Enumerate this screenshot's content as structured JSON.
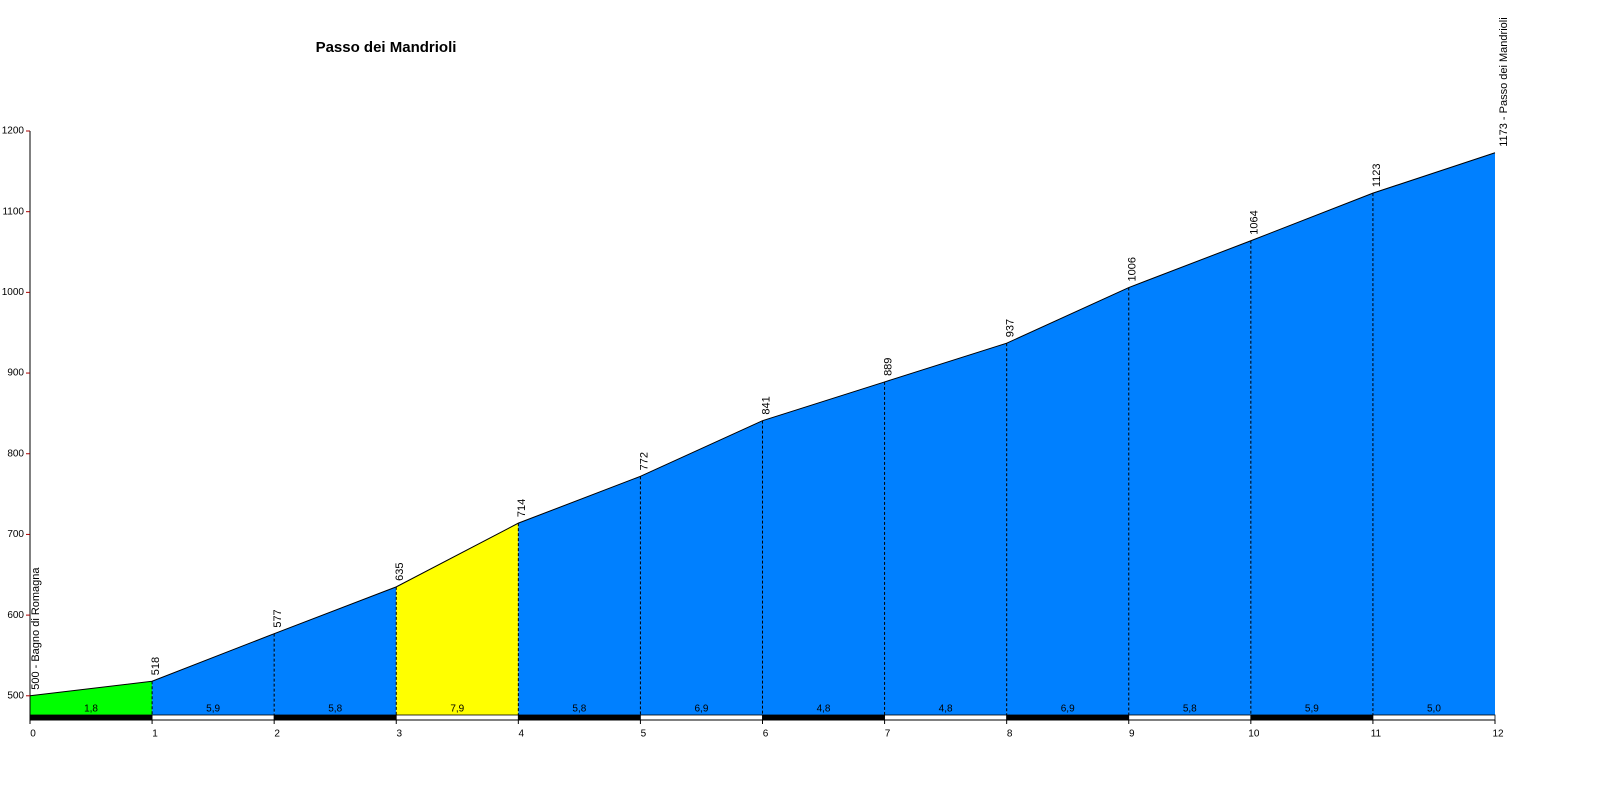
{
  "chart_data": {
    "type": "elevation-profile",
    "title": "Passo dei Mandrioli",
    "x": [
      0,
      1,
      2,
      3,
      4,
      5,
      6,
      7,
      8,
      9,
      10,
      11,
      12
    ],
    "values": [
      500,
      518,
      577,
      635,
      714,
      772,
      841,
      889,
      937,
      1006,
      1064,
      1123,
      1173
    ],
    "value_labels": [
      "500 - Bagno di Romagna",
      "518",
      "577",
      "635",
      "714",
      "772",
      "841",
      "889",
      "937",
      "1006",
      "1064",
      "1123",
      "1173 - Passo dei Mandrioli"
    ],
    "gradients": [
      1.8,
      5.9,
      5.8,
      7.9,
      5.8,
      6.9,
      4.8,
      4.8,
      6.9,
      5.8,
      5.9,
      5.0
    ],
    "gradient_labels": [
      "1,8",
      "5,9",
      "5,8",
      "7,9",
      "5,8",
      "6,9",
      "4,8",
      "4,8",
      "6,9",
      "5,8",
      "5,9",
      "5,0"
    ],
    "segment_colors": [
      "#00ff00",
      "#0080ff",
      "#0080ff",
      "#ffff00",
      "#0080ff",
      "#0080ff",
      "#0080ff",
      "#0080ff",
      "#0080ff",
      "#0080ff",
      "#0080ff",
      "#0080ff"
    ],
    "xlim": [
      0,
      12
    ],
    "xticks": [
      0,
      1,
      2,
      3,
      4,
      5,
      6,
      7,
      8,
      9,
      10,
      11,
      12
    ],
    "ylim": [
      470,
      1200
    ],
    "yticks": [
      500,
      600,
      700,
      800,
      900,
      1000,
      1100,
      1200
    ]
  }
}
